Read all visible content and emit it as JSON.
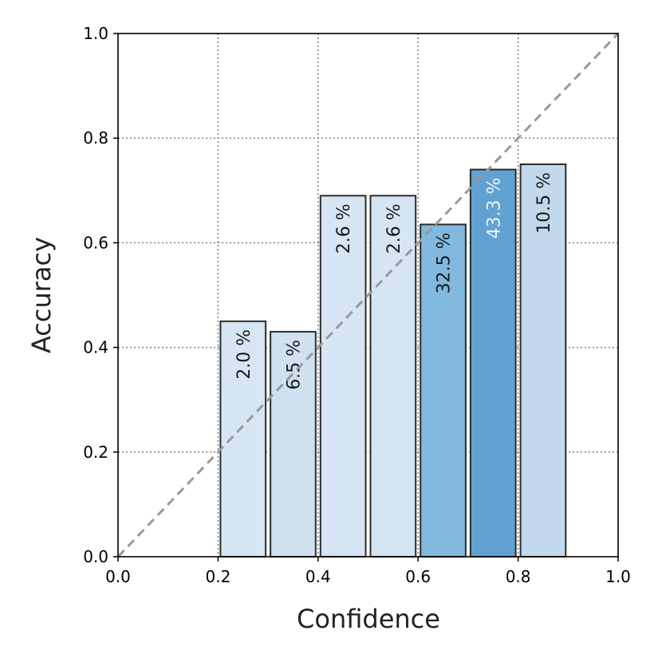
{
  "chart_data": {
    "type": "bar",
    "xlabel": "Confidence",
    "ylabel": "Accuracy",
    "xlim": [
      0.0,
      1.0
    ],
    "ylim": [
      0.0,
      1.0
    ],
    "xticks": [
      "0.0",
      "0.2",
      "0.4",
      "0.6",
      "0.8",
      "1.0"
    ],
    "yticks": [
      "0.0",
      "0.2",
      "0.4",
      "0.6",
      "0.8",
      "1.0"
    ],
    "grid": true,
    "reference_line": {
      "from": [
        0.0,
        0.0
      ],
      "to": [
        1.0,
        1.0
      ],
      "style": "dashed",
      "color": "#999999"
    },
    "bins": [
      {
        "x_start": 0.2,
        "x_end": 0.3,
        "accuracy": 0.45,
        "label": "2.0 %",
        "color": "#d5e5f3",
        "text_color": "#1a1a1a"
      },
      {
        "x_start": 0.3,
        "x_end": 0.4,
        "accuracy": 0.43,
        "label": "6.5 %",
        "color": "#cfe1f1",
        "text_color": "#1a1a1a"
      },
      {
        "x_start": 0.4,
        "x_end": 0.5,
        "accuracy": 0.69,
        "label": "2.6 %",
        "color": "#d5e5f3",
        "text_color": "#1a1a1a"
      },
      {
        "x_start": 0.5,
        "x_end": 0.6,
        "accuracy": 0.69,
        "label": "2.6 %",
        "color": "#d5e5f3",
        "text_color": "#1a1a1a"
      },
      {
        "x_start": 0.6,
        "x_end": 0.7,
        "accuracy": 0.635,
        "label": "32.5 %",
        "color": "#82b8de",
        "text_color": "#1a1a1a"
      },
      {
        "x_start": 0.7,
        "x_end": 0.8,
        "accuracy": 0.74,
        "label": "43.3 %",
        "color": "#62a2d2",
        "text_color": "#e8f2fa"
      },
      {
        "x_start": 0.8,
        "x_end": 0.9,
        "accuracy": 0.75,
        "label": "10.5 %",
        "color": "#c2d9ed",
        "text_color": "#1a1a1a"
      }
    ]
  }
}
